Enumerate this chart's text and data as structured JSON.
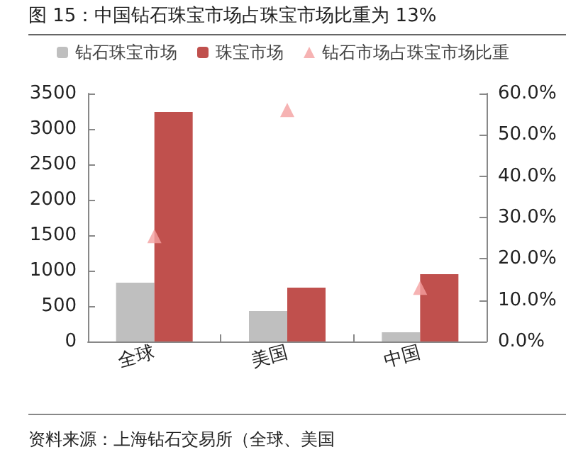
{
  "chart_data": {
    "type": "bar",
    "title": "图 15：中国钻石珠宝市场占珠宝市场比重为 13%",
    "categories": [
      "全球",
      "美国",
      "中国"
    ],
    "series": [
      {
        "name": "钻石珠宝市场",
        "color": "#bfbfbf",
        "values": [
          830,
          430,
          130
        ]
      },
      {
        "name": "珠宝市场",
        "color": "#c0504d",
        "values": [
          3240,
          760,
          950
        ]
      },
      {
        "name": "钻石市场占珠宝市场比重",
        "type": "scatter",
        "axis": "y2",
        "color": "#f4a0a0",
        "marker": "triangle",
        "values": [
          25.5,
          56,
          13
        ]
      }
    ],
    "ylim": [
      0,
      3500
    ],
    "yticks": [
      0,
      500,
      1000,
      1500,
      2000,
      2500,
      3000,
      3500
    ],
    "y2lim": [
      0,
      60
    ],
    "y2ticks": [
      {
        "value": 0,
        "label": "0.0%"
      },
      {
        "value": 10,
        "label": "10.0%"
      },
      {
        "value": 20,
        "label": "20.0%"
      },
      {
        "value": 30,
        "label": "30.0%"
      },
      {
        "value": 40,
        "label": "40.0%"
      },
      {
        "value": 50,
        "label": "50.0%"
      },
      {
        "value": 60,
        "label": "60.0%"
      }
    ],
    "grid": false,
    "legend": "top",
    "annotations": [
      "资料来源：上海钻石交易所（全球、美国"
    ]
  }
}
